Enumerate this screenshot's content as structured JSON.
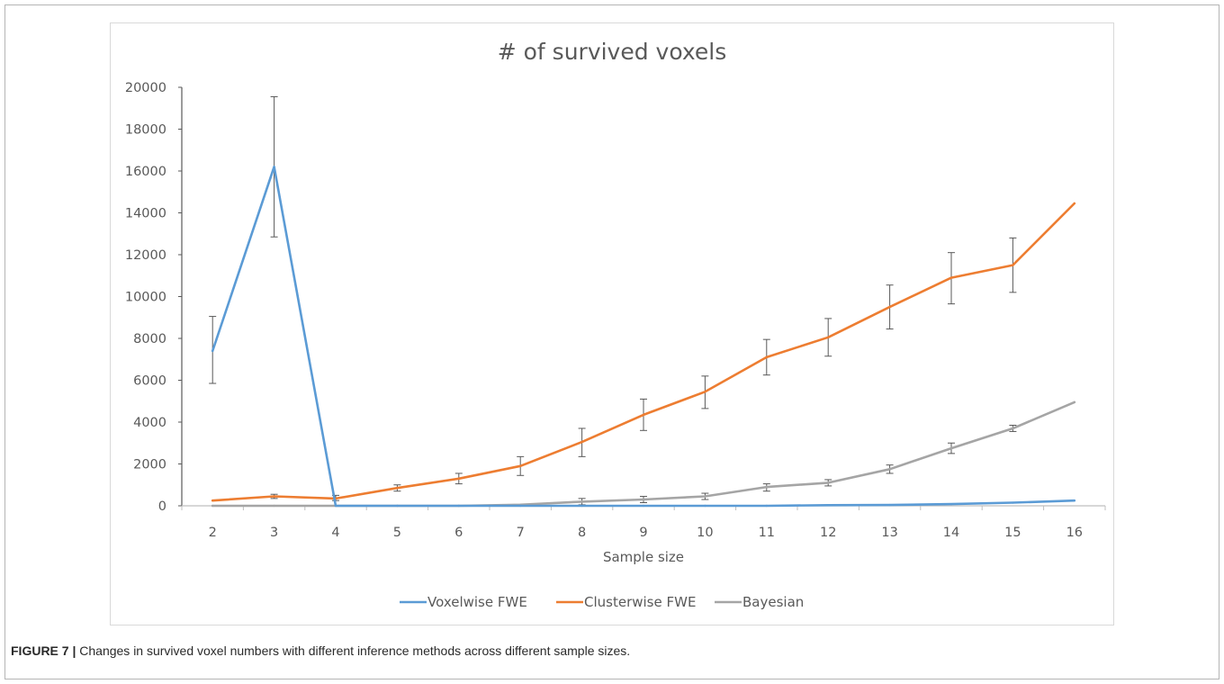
{
  "caption": {
    "label": "FIGURE 7 |",
    "text": " Changes in survived voxel numbers with different inference methods across different sample sizes."
  },
  "chart_data": {
    "type": "line",
    "title": "# of survived voxels",
    "xlabel": "Sample size",
    "ylabel": "",
    "categories": [
      "2",
      "3",
      "4",
      "5",
      "6",
      "7",
      "8",
      "9",
      "10",
      "11",
      "12",
      "13",
      "14",
      "15",
      "16"
    ],
    "ylim": [
      0,
      20000
    ],
    "yticks": [
      0,
      2000,
      4000,
      6000,
      8000,
      10000,
      12000,
      14000,
      16000,
      18000,
      20000
    ],
    "ytick_labels": [
      "0",
      "2000",
      "4000",
      "6000",
      "8000",
      "10000",
      "12000",
      "14000",
      "16000",
      "18000",
      "20000"
    ],
    "grid": false,
    "legend_position": "bottom",
    "series": [
      {
        "name": "Voxelwise FWE",
        "color": "#5b9bd5",
        "values": [
          7400,
          16200,
          0,
          0,
          0,
          0,
          0,
          0,
          0,
          0,
          30,
          40,
          80,
          150,
          250
        ],
        "error_low": [
          5850,
          12850,
          null,
          null,
          null,
          null,
          null,
          null,
          null,
          null,
          null,
          null,
          null,
          null,
          null
        ],
        "error_high": [
          9050,
          19550,
          null,
          null,
          null,
          null,
          null,
          null,
          null,
          null,
          null,
          null,
          null,
          null,
          null
        ]
      },
      {
        "name": "Clusterwise FWE",
        "color": "#ed7d31",
        "values": [
          250,
          450,
          350,
          850,
          1300,
          1900,
          3050,
          4350,
          5450,
          7100,
          8050,
          9500,
          10900,
          11500,
          14450
        ],
        "error_low": [
          null,
          350,
          250,
          700,
          1050,
          1450,
          2350,
          3600,
          4650,
          6250,
          7150,
          8450,
          9650,
          10200,
          null
        ],
        "error_high": [
          null,
          550,
          500,
          1000,
          1550,
          2350,
          3700,
          5100,
          6200,
          7950,
          8950,
          10550,
          12100,
          12800,
          null
        ]
      },
      {
        "name": "Bayesian",
        "color": "#a5a5a5",
        "values": [
          0,
          0,
          0,
          0,
          0,
          50,
          200,
          300,
          450,
          900,
          1100,
          1750,
          2750,
          3700,
          4950
        ],
        "error_low": [
          null,
          null,
          null,
          null,
          null,
          null,
          50,
          150,
          300,
          700,
          950,
          1550,
          2500,
          3550,
          null
        ],
        "error_high": [
          null,
          null,
          null,
          null,
          null,
          null,
          350,
          450,
          600,
          1050,
          1250,
          1950,
          3000,
          3850,
          null
        ]
      }
    ]
  }
}
